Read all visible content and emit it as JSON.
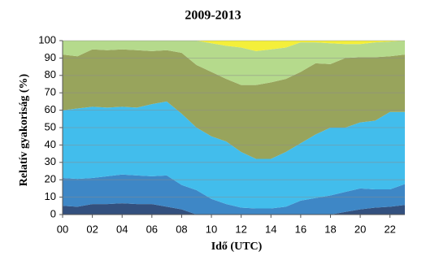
{
  "chart_data": {
    "type": "stacked_area",
    "title": "2009-2013",
    "xlabel": "Idő (UTC)",
    "ylabel": "Relatív gyakoriság (%)",
    "x": [
      0,
      1,
      2,
      3,
      4,
      5,
      6,
      7,
      8,
      9,
      10,
      11,
      12,
      13,
      14,
      15,
      16,
      17,
      18,
      19,
      20,
      21,
      22,
      23
    ],
    "xlim": [
      0,
      23
    ],
    "xticks": [
      {
        "value": 0,
        "label": "00"
      },
      {
        "value": 2,
        "label": "02"
      },
      {
        "value": 4,
        "label": "04"
      },
      {
        "value": 6,
        "label": "06"
      },
      {
        "value": 8,
        "label": "08"
      },
      {
        "value": 10,
        "label": "10"
      },
      {
        "value": 12,
        "label": "12"
      },
      {
        "value": 14,
        "label": "14"
      },
      {
        "value": 16,
        "label": "16"
      },
      {
        "value": 18,
        "label": "18"
      },
      {
        "value": 20,
        "label": "20"
      },
      {
        "value": 22,
        "label": "22"
      }
    ],
    "ylim": [
      0,
      100
    ],
    "yticks": [
      0,
      10,
      20,
      30,
      40,
      50,
      60,
      70,
      80,
      90,
      100
    ],
    "grid": true,
    "series": [
      {
        "color": "#33507e",
        "values": [
          5,
          4.5,
          6,
          6,
          6.5,
          6,
          6,
          4.5,
          3,
          0,
          0,
          0,
          0,
          0,
          0,
          0,
          0,
          0,
          0,
          1.5,
          3,
          4,
          4.5,
          5.5
        ]
      },
      {
        "color": "#3e87c6",
        "values": [
          16,
          16,
          15,
          16,
          16.5,
          16.5,
          16,
          18,
          14,
          14,
          9,
          6,
          4,
          3.5,
          3.5,
          4.5,
          8,
          9.5,
          11,
          11.5,
          12,
          10.5,
          10,
          12
        ]
      },
      {
        "color": "#42bdec",
        "values": [
          39,
          40.5,
          41,
          39.5,
          39,
          39,
          41.5,
          42.5,
          41,
          36,
          36,
          36,
          32,
          28.5,
          28.5,
          31.5,
          33,
          36.5,
          39,
          37,
          38,
          39.5,
          44.5,
          41.5
        ]
      },
      {
        "color": "#98a45c",
        "values": [
          32,
          30,
          33,
          33,
          33,
          33,
          30.5,
          29.5,
          35,
          36,
          37,
          36,
          38.5,
          42.5,
          44,
          42,
          41,
          41,
          36.5,
          40,
          37.5,
          36.5,
          32,
          33
        ]
      },
      {
        "color": "#b5da8c",
        "values": [
          8,
          9,
          5,
          5.5,
          5,
          5.5,
          6,
          5.5,
          7,
          14,
          16.5,
          19,
          21.5,
          19.5,
          19,
          18,
          17,
          12,
          12,
          8,
          7.5,
          8.5,
          8.5,
          8
        ]
      },
      {
        "color": "#f4ef3a",
        "values": [
          0,
          0,
          0,
          0,
          0,
          0,
          0,
          0,
          0,
          0,
          1.5,
          3,
          4,
          6,
          5,
          4,
          1,
          1,
          1.5,
          2,
          2,
          1,
          0.5,
          0
        ]
      }
    ]
  }
}
